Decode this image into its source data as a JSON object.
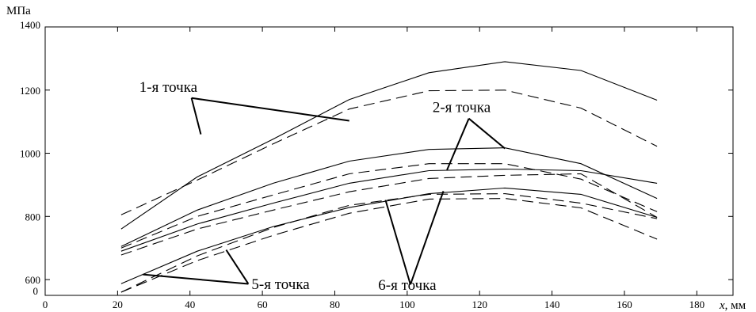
{
  "chart_data": {
    "type": "line",
    "ylabel": "МПа",
    "xlabel_var": "x",
    "xlabel_unit": ", мм",
    "xlim": [
      0,
      190
    ],
    "ylim": [
      0,
      1400
    ],
    "y_display_min": 550,
    "x_ticks": [
      0,
      20,
      40,
      60,
      80,
      100,
      120,
      140,
      160,
      180
    ],
    "y_ticks": [
      600,
      800,
      1000,
      1200,
      1400
    ],
    "y_zero_label": "0",
    "grid": false,
    "series": [
      {
        "x": [
          21,
          42,
          63,
          84,
          106,
          127,
          148,
          169
        ],
        "values": [
          760,
          925,
          1045,
          1170,
          1255,
          1290,
          1262,
          1168
        ],
        "dash": false
      },
      {
        "x": [
          21,
          42,
          63,
          84,
          106,
          127,
          148,
          169
        ],
        "values": [
          805,
          915,
          1030,
          1140,
          1198,
          1200,
          1143,
          1022
        ],
        "dash": true
      },
      {
        "x": [
          21,
          42,
          63,
          84,
          106,
          127,
          148,
          169
        ],
        "values": [
          705,
          820,
          905,
          975,
          1012,
          1017,
          967,
          857
        ],
        "dash": false
      },
      {
        "x": [
          21,
          42,
          63,
          84,
          106,
          127,
          148,
          169
        ],
        "values": [
          700,
          800,
          868,
          935,
          967,
          967,
          918,
          815
        ],
        "dash": true
      },
      {
        "x": [
          21,
          42,
          63,
          84,
          106,
          127,
          148,
          169
        ],
        "values": [
          690,
          776,
          842,
          905,
          945,
          950,
          945,
          905
        ],
        "dash": false
      },
      {
        "x": [
          21,
          42,
          63,
          84,
          106,
          127,
          148,
          169
        ],
        "values": [
          678,
          760,
          820,
          878,
          920,
          930,
          935,
          797
        ],
        "dash": true
      },
      {
        "x": [
          21,
          42,
          63,
          84,
          106,
          127,
          148,
          169
        ],
        "values": [
          587,
          690,
          768,
          828,
          872,
          890,
          870,
          797
        ],
        "dash": false
      },
      {
        "x": [
          21,
          42,
          63,
          84,
          106,
          127,
          148,
          169
        ],
        "values": [
          560,
          675,
          765,
          835,
          870,
          872,
          842,
          793
        ],
        "dash": true
      },
      {
        "x": [
          21,
          42,
          63,
          84,
          106,
          127,
          148,
          169
        ],
        "values": [
          560,
          660,
          740,
          810,
          855,
          857,
          827,
          728
        ],
        "dash": true
      }
    ],
    "annotations": [
      {
        "text": "1-я точка",
        "x": 26,
        "y": 1195,
        "pointers": [
          [
            43,
            1060
          ],
          [
            84,
            1103
          ]
        ]
      },
      {
        "text": "2-я точка",
        "x": 107,
        "y": 1130,
        "pointers": [
          [
            127,
            1015
          ],
          [
            111,
            947
          ]
        ]
      },
      {
        "text": "5-я точка",
        "x": 57,
        "y": 570,
        "pointers": [
          [
            27,
            616
          ],
          [
            50,
            694
          ]
        ]
      },
      {
        "text": "6-я точка",
        "x": 92,
        "y": 568,
        "pointers": [
          [
            94,
            852
          ],
          [
            110,
            880
          ]
        ]
      }
    ]
  }
}
